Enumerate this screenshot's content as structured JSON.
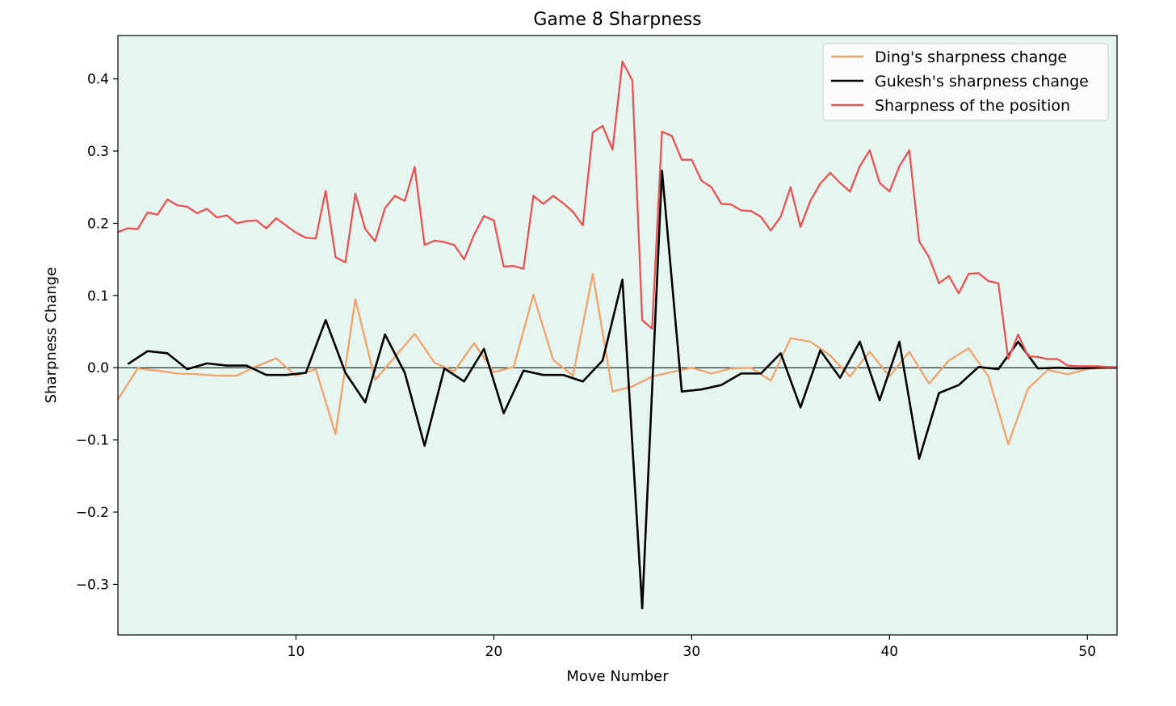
{
  "chart_data": {
    "type": "line",
    "title": "Game 8 Sharpness",
    "xlabel": "Move Number",
    "ylabel": "Sharpness Change",
    "xlim": [
      1,
      51.5
    ],
    "ylim": [
      -0.37,
      0.46
    ],
    "xticks": [
      10,
      20,
      30,
      40,
      50
    ],
    "yticks": [
      -0.3,
      -0.2,
      -0.1,
      0.0,
      0.1,
      0.2,
      0.3,
      0.4
    ],
    "ytick_labels": [
      "−0.3",
      "−0.2",
      "−0.1",
      "0.0",
      "0.1",
      "0.2",
      "0.3",
      "0.4"
    ],
    "xtick_labels": [
      "10",
      "20",
      "30",
      "40",
      "50"
    ],
    "background_color": "#e6f5ef",
    "zero_line": true,
    "legend_position": "top-right",
    "series": [
      {
        "name": "Ding's sharpness change",
        "color": "#f0a46c",
        "x": [
          1,
          2,
          3,
          4,
          5,
          6,
          7,
          8,
          9,
          10,
          11,
          12,
          13,
          14,
          15,
          16,
          17,
          18,
          19,
          20,
          21,
          22,
          23,
          24,
          25,
          26,
          27,
          28,
          29,
          30,
          31,
          32,
          33,
          34,
          35,
          36,
          37,
          38,
          39,
          40,
          41,
          42,
          43,
          44,
          45,
          46,
          47,
          48,
          49,
          50,
          51
        ],
        "y": [
          -0.044,
          -0.001,
          -0.004,
          -0.008,
          -0.009,
          -0.011,
          -0.011,
          0.002,
          0.013,
          -0.011,
          -0.002,
          -0.092,
          0.095,
          -0.017,
          0.015,
          0.047,
          0.007,
          -0.005,
          0.034,
          -0.006,
          0.001,
          0.101,
          0.011,
          -0.011,
          0.13,
          -0.033,
          -0.026,
          -0.012,
          -0.006,
          0.0,
          -0.008,
          -0.001,
          0.0,
          -0.018,
          0.041,
          0.036,
          0.017,
          -0.012,
          0.022,
          -0.012,
          0.022,
          -0.022,
          0.01,
          0.027,
          -0.012,
          -0.106,
          -0.029,
          -0.003,
          -0.009,
          -0.002,
          0.0
        ]
      },
      {
        "name": "Gukesh's sharpness change",
        "color": "#000000",
        "x": [
          1.5,
          2.5,
          3.5,
          4.5,
          5.5,
          6.5,
          7.5,
          8.5,
          9.5,
          10.5,
          11.5,
          12.5,
          13.5,
          14.5,
          15.5,
          16.5,
          17.5,
          18.5,
          19.5,
          20.5,
          21.5,
          22.5,
          23.5,
          24.5,
          25.5,
          26.5,
          27.5,
          28.5,
          29.5,
          30.5,
          31.5,
          32.5,
          33.5,
          34.5,
          35.5,
          36.5,
          37.5,
          38.5,
          39.5,
          40.5,
          41.5,
          42.5,
          43.5,
          44.5,
          45.5,
          46.5,
          47.5,
          48.5,
          49.5,
          50.5,
          51.5
        ],
        "y": [
          0.005,
          0.023,
          0.02,
          -0.002,
          0.006,
          0.003,
          0.003,
          -0.01,
          -0.01,
          -0.007,
          0.066,
          -0.007,
          -0.048,
          0.046,
          -0.007,
          -0.108,
          -0.001,
          -0.019,
          0.026,
          -0.063,
          -0.004,
          -0.01,
          -0.01,
          -0.019,
          0.01,
          0.122,
          -0.333,
          0.273,
          -0.033,
          -0.03,
          -0.024,
          -0.008,
          -0.008,
          0.02,
          -0.055,
          0.024,
          -0.014,
          0.036,
          -0.045,
          0.036,
          -0.126,
          -0.035,
          -0.024,
          0.001,
          -0.002,
          0.036,
          -0.001,
          0.0,
          -0.001,
          0.0,
          0.0
        ]
      },
      {
        "name": "Sharpness of the position",
        "color": "#e85252",
        "x": [
          1,
          1.5,
          2,
          2.5,
          3,
          3.5,
          4,
          4.5,
          5,
          5.5,
          6,
          6.5,
          7,
          7.5,
          8,
          8.5,
          9,
          9.5,
          10,
          10.5,
          11,
          11.5,
          12,
          12.5,
          13,
          13.5,
          14,
          14.5,
          15,
          15.5,
          16,
          16.5,
          17,
          17.5,
          18,
          18.5,
          19,
          19.5,
          20,
          20.5,
          21,
          21.5,
          22,
          22.5,
          23,
          23.5,
          24,
          24.5,
          25,
          25.5,
          26,
          26.5,
          27,
          27.5,
          28,
          28.5,
          29,
          29.5,
          30,
          30.5,
          31,
          31.5,
          32,
          32.5,
          33,
          33.5,
          34,
          34.5,
          35,
          35.5,
          36,
          36.5,
          37,
          37.5,
          38,
          38.5,
          39,
          39.5,
          40,
          40.5,
          41,
          41.5,
          42,
          42.5,
          43,
          43.5,
          44,
          44.5,
          45,
          45.5,
          46,
          46.5,
          47,
          47.5,
          48,
          48.5,
          49,
          49.5,
          50,
          50.5,
          51,
          51.5
        ],
        "y": [
          0.188,
          0.193,
          0.192,
          0.215,
          0.212,
          0.233,
          0.225,
          0.223,
          0.214,
          0.22,
          0.208,
          0.211,
          0.2,
          0.203,
          0.204,
          0.193,
          0.207,
          0.197,
          0.187,
          0.18,
          0.179,
          0.245,
          0.153,
          0.146,
          0.241,
          0.192,
          0.175,
          0.221,
          0.238,
          0.231,
          0.278,
          0.17,
          0.176,
          0.174,
          0.17,
          0.15,
          0.184,
          0.21,
          0.204,
          0.14,
          0.141,
          0.137,
          0.238,
          0.227,
          0.238,
          0.228,
          0.216,
          0.197,
          0.326,
          0.335,
          0.302,
          0.424,
          0.398,
          0.066,
          0.054,
          0.327,
          0.321,
          0.288,
          0.288,
          0.259,
          0.25,
          0.227,
          0.226,
          0.218,
          0.217,
          0.209,
          0.19,
          0.209,
          0.25,
          0.195,
          0.231,
          0.255,
          0.27,
          0.256,
          0.244,
          0.279,
          0.301,
          0.256,
          0.244,
          0.279,
          0.301,
          0.175,
          0.153,
          0.117,
          0.127,
          0.103,
          0.13,
          0.131,
          0.12,
          0.117,
          0.012,
          0.046,
          0.016,
          0.015,
          0.012,
          0.012,
          0.003,
          0.002,
          0.002,
          0.002,
          0.001,
          0.001
        ]
      }
    ]
  }
}
